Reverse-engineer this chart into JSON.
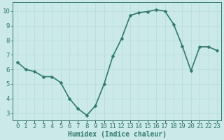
{
  "x": [
    0,
    1,
    2,
    3,
    4,
    5,
    6,
    7,
    8,
    9,
    10,
    11,
    12,
    13,
    14,
    15,
    16,
    17,
    18,
    19,
    20,
    21,
    22,
    23
  ],
  "y": [
    6.5,
    6.0,
    5.85,
    5.5,
    5.5,
    5.1,
    4.0,
    3.3,
    2.85,
    3.5,
    5.0,
    6.9,
    8.1,
    9.7,
    9.9,
    9.97,
    10.1,
    10.0,
    9.1,
    7.6,
    5.9,
    7.55,
    7.55,
    7.3
  ],
  "xlabel": "Humidex (Indice chaleur)",
  "ylim": [
    2.5,
    10.6
  ],
  "xlim": [
    -0.5,
    23.5
  ],
  "yticks": [
    3,
    4,
    5,
    6,
    7,
    8,
    9,
    10
  ],
  "xtick_labels": [
    "0",
    "1",
    "2",
    "3",
    "4",
    "5",
    "6",
    "7",
    "8",
    "9",
    "10",
    "11",
    "12",
    "13",
    "14",
    "15",
    "16",
    "17",
    "18",
    "19",
    "20",
    "21",
    "22",
    "23"
  ],
  "line_color": "#2d7b6d",
  "marker_color": "#2d7b6d",
  "bg_color": "#cce9e9",
  "grid_color": "#b8dcdc",
  "tick_label_color": "#2d7b6d",
  "xlabel_color": "#2d7b6d",
  "xlabel_fontsize": 7,
  "tick_fontsize": 6.5,
  "line_width": 1.2,
  "marker_size": 2.5,
  "spine_color": "#2d7b6d"
}
